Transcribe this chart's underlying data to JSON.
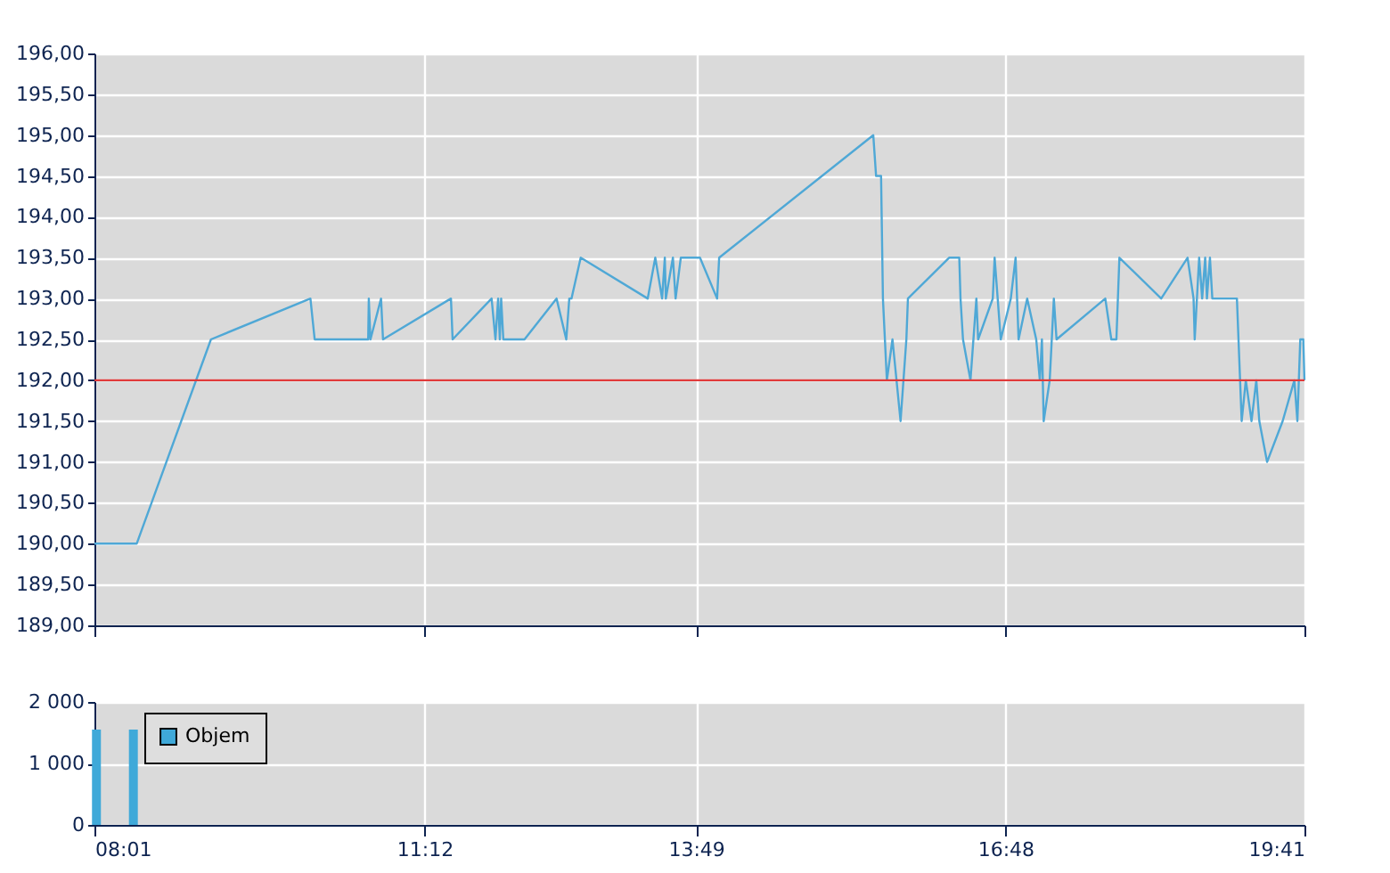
{
  "chart_data": [
    {
      "type": "line",
      "tick_labels": "y",
      "grid": true,
      "xlim": [
        8.0167,
        19.6833
      ],
      "xticks": [
        {
          "value": 8.0167,
          "label": null
        },
        {
          "value": 11.2,
          "label": null
        },
        {
          "value": 13.8167,
          "label": null
        },
        {
          "value": 16.8,
          "label": null
        },
        {
          "value": 19.6833,
          "label": null
        }
      ],
      "ylim": [
        189,
        196
      ],
      "yticks": [
        {
          "value": 189,
          "label": "189,00"
        },
        {
          "value": 189.5,
          "label": "189,50"
        },
        {
          "value": 190,
          "label": "190,00"
        },
        {
          "value": 190.5,
          "label": "190,50"
        },
        {
          "value": 191,
          "label": "191,00"
        },
        {
          "value": 191.5,
          "label": "191,50"
        },
        {
          "value": 192,
          "label": "192,00"
        },
        {
          "value": 192.5,
          "label": "192,50"
        },
        {
          "value": 193,
          "label": "193,00"
        },
        {
          "value": 193.5,
          "label": "193,50"
        },
        {
          "value": 194,
          "label": "194,00"
        },
        {
          "value": 194.5,
          "label": "194,50"
        },
        {
          "value": 195,
          "label": "195,00"
        },
        {
          "value": 195.5,
          "label": "195,50"
        },
        {
          "value": 196,
          "label": "196,00"
        }
      ],
      "ref_lines": [
        {
          "axis": "y",
          "value": 192,
          "color": "#e03a3a"
        }
      ],
      "series": [
        {
          "color": "#4fa8d6",
          "x": [
            8.017,
            8.424,
            9.14,
            10.099,
            10.14,
            10.656,
            10.662,
            10.678,
            10.78,
            10.799,
            11.454,
            11.47,
            11.846,
            11.883,
            11.909,
            11.925,
            11.938,
            11.959,
            12.163,
            12.472,
            12.566,
            12.595,
            12.616,
            12.705,
            13.351,
            13.424,
            13.49,
            13.516,
            13.526,
            13.594,
            13.62,
            13.67,
            13.855,
            14.02,
            14.04,
            15.526,
            15.553,
            15.601,
            15.619,
            15.657,
            15.711,
            15.789,
            15.845,
            15.86,
            16.257,
            16.355,
            16.367,
            16.391,
            16.463,
            16.52,
            16.537,
            16.678,
            16.696,
            16.755,
            16.852,
            16.898,
            16.927,
            17.01,
            17.097,
            17.132,
            17.152,
            17.169,
            17.227,
            17.267,
            17.293,
            17.763,
            17.821,
            17.87,
            17.899,
            18.302,
            18.556,
            18.614,
            18.625,
            18.668,
            18.697,
            18.726,
            18.743,
            18.772,
            18.795,
            19.032,
            19.078,
            19.118,
            19.173,
            19.219,
            19.248,
            19.323,
            19.473,
            19.586,
            19.615,
            19.643,
            19.672,
            19.683
          ],
          "values": [
            190,
            190,
            192.5,
            193,
            192.5,
            192.5,
            193,
            192.5,
            193,
            192.5,
            193,
            192.5,
            193,
            192.5,
            193,
            192.5,
            193,
            192.5,
            192.5,
            193,
            192.5,
            193,
            193,
            193.5,
            193,
            193.5,
            193,
            193.5,
            193,
            193.5,
            193,
            193.5,
            193.5,
            193,
            193.5,
            195,
            194.5,
            194.5,
            193,
            192,
            192.5,
            191.5,
            192.5,
            193,
            193.5,
            193.5,
            193,
            192.5,
            192,
            193,
            192.5,
            193,
            193.5,
            192.5,
            193,
            193.5,
            192.5,
            193,
            192.5,
            192,
            192.5,
            191.5,
            192,
            193,
            192.5,
            193,
            192.5,
            192.5,
            193.5,
            193,
            193.5,
            193,
            192.5,
            193.5,
            193,
            193.5,
            193,
            193.5,
            193,
            193,
            191.5,
            192,
            191.5,
            192,
            191.5,
            191,
            191.5,
            192,
            191.5,
            192.5,
            192.5,
            192
          ]
        }
      ]
    },
    {
      "type": "bar",
      "grid": true,
      "legend": "top left",
      "xlim": [
        8.0167,
        19.6833
      ],
      "xticks": [
        {
          "value": 8.0167,
          "label": "08:01"
        },
        {
          "value": 11.2,
          "label": "11:12"
        },
        {
          "value": 13.8167,
          "label": "13:49"
        },
        {
          "value": 16.8,
          "label": "16:48"
        },
        {
          "value": 19.6833,
          "label": "19:41"
        }
      ],
      "ylim": [
        0,
        2000
      ],
      "yticks": [
        {
          "value": 0,
          "label": "0"
        },
        {
          "value": 1000,
          "label": "1 000"
        },
        {
          "value": 2000,
          "label": "2 000"
        }
      ],
      "series": [
        {
          "name": "Objem",
          "color": "#3fa9d9",
          "x": [
            8.036,
            8.392
          ],
          "values": [
            1550,
            1550
          ]
        }
      ]
    }
  ]
}
